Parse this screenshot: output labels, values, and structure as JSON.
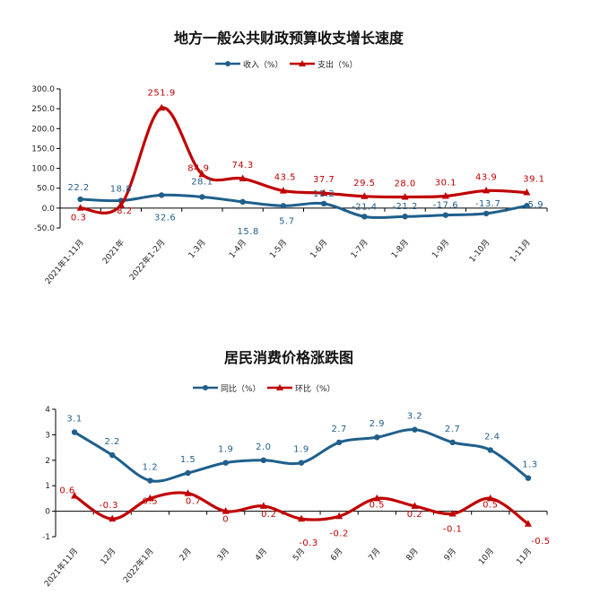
{
  "chart_data": [
    {
      "type": "line",
      "title": "地方一般公共财政预算收支增长速度",
      "categories": [
        "2021年1-11月",
        "2021年",
        "2022年1-2月",
        "1-3月",
        "1-4月",
        "1-5月",
        "1-6月",
        "1-7月",
        "1-8月",
        "1-9月",
        "1-10月",
        "1-11月"
      ],
      "series": [
        {
          "name": "收入（%）",
          "values": [
            22.2,
            18.8,
            32.6,
            28.1,
            15.8,
            5.7,
            11.2,
            -21.4,
            -21.2,
            -17.6,
            -13.7,
            5.9
          ],
          "labels": [
            "22.2",
            "18.8",
            "32.6",
            "28.1",
            "15.8",
            "5.7",
            "11.2",
            "-21.4",
            "-21.2",
            "-17.6",
            "-13.7",
            "5.9"
          ]
        },
        {
          "name": "支出（%）",
          "values": [
            0.3,
            8.2,
            251.9,
            84.9,
            74.3,
            43.5,
            37.7,
            29.5,
            28.0,
            30.1,
            43.9,
            39.1
          ],
          "labels": [
            "0.3",
            "8.2",
            "251.9",
            "84.9",
            "74.3",
            "43.5",
            "37.7",
            "29.5",
            "28.0",
            "30.1",
            "43.9",
            "39.1"
          ]
        }
      ],
      "ylim": [
        -50,
        300
      ],
      "yticks": [
        "-50.0",
        "0.0",
        "50.0",
        "100.0",
        "150.0",
        "200.0",
        "250.0",
        "300.0"
      ],
      "ytick_values": [
        -50,
        0,
        50,
        100,
        150,
        200,
        250,
        300
      ],
      "legend": "top",
      "grid": false,
      "colors": [
        "#1f5f8b",
        "#c00000"
      ]
    },
    {
      "type": "line",
      "title": "居民消费价格涨跌图",
      "categories": [
        "2021年11月",
        "12月",
        "2022年1月",
        "2月",
        "3月",
        "4月",
        "5月",
        "6月",
        "7月",
        "8月",
        "9月",
        "10月",
        "11月"
      ],
      "series": [
        {
          "name": "同比（%）",
          "values": [
            3.1,
            2.2,
            1.2,
            1.5,
            1.9,
            2.0,
            1.9,
            2.7,
            2.9,
            3.2,
            2.7,
            2.4,
            1.3
          ],
          "labels": [
            "3.1",
            "2.2",
            "1.2",
            "1.5",
            "1.9",
            "2.0",
            "1.9",
            "2.7",
            "2.9",
            "3.2",
            "2.7",
            "2.4",
            "1.3"
          ]
        },
        {
          "name": "环比（%）",
          "values": [
            0.6,
            -0.3,
            0.5,
            0.7,
            0,
            0.2,
            -0.3,
            -0.2,
            0.5,
            0.2,
            -0.1,
            0.5,
            -0.5
          ],
          "labels": [
            "0.6",
            "-0.3",
            "0.5",
            "0.7",
            "0",
            "0.2",
            "-0.3",
            "-0.2",
            "0.5",
            "0.2",
            "-0.1",
            "0.5",
            "-0.5"
          ]
        }
      ],
      "ylim": [
        -1,
        4
      ],
      "yticks": [
        "-1",
        "0",
        "1",
        "2",
        "3",
        "4"
      ],
      "ytick_values": [
        -1,
        0,
        1,
        2,
        3,
        4
      ],
      "legend": "top",
      "grid": false,
      "colors": [
        "#1f5f8b",
        "#c00000"
      ]
    }
  ]
}
